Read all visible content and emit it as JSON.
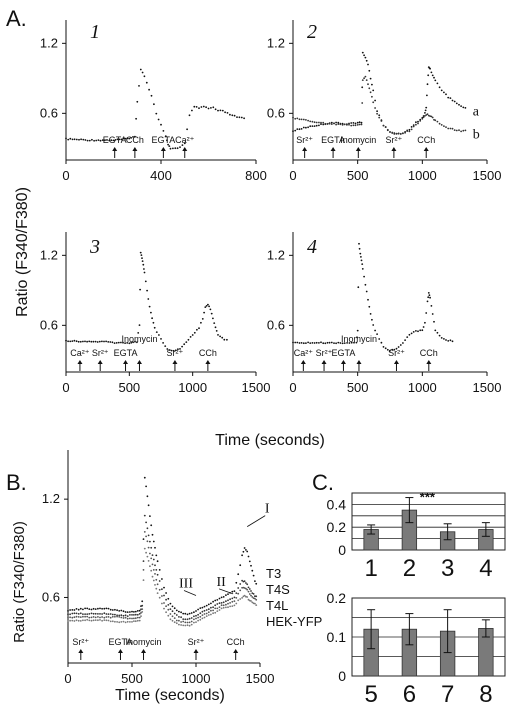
{
  "figure": {
    "panel_labels": [
      "A.",
      "B.",
      "C."
    ],
    "ylabel": "Ratio (F340/F380)",
    "xlabel_A": "Time (seconds)",
    "xlabel_B": "Time (seconds)"
  },
  "chart_data": [
    {
      "type": "scatter",
      "panel": "A1",
      "panel_number": "1",
      "xlim": [
        0,
        800
      ],
      "ylim": [
        0.2,
        1.4
      ],
      "xticks": [
        0,
        400,
        800
      ],
      "xticklabels": [
        "0",
        "400",
        "800"
      ],
      "yticks": [
        0.6,
        1.2
      ],
      "yticklabels": [
        "0.6",
        "1.2"
      ],
      "events": [
        {
          "label": "EGTA",
          "t": 205
        },
        {
          "label": "CCh",
          "t": 290
        },
        {
          "label": "EGTA",
          "t": 410
        },
        {
          "label": "Ca²⁺",
          "t": 500
        }
      ],
      "series": [
        {
          "x": [
            0,
            100,
            200,
            250,
            290,
            300,
            315,
            330,
            360,
            380,
            400,
            420,
            430,
            440,
            460,
            480,
            500,
            520,
            540,
            560,
            580,
            600,
            620,
            640,
            660,
            680,
            700,
            720,
            740,
            760
          ],
          "y": [
            0.38,
            0.37,
            0.37,
            0.38,
            0.4,
            0.7,
            0.98,
            0.92,
            0.75,
            0.6,
            0.5,
            0.4,
            0.33,
            0.3,
            0.3,
            0.31,
            0.34,
            0.58,
            0.66,
            0.64,
            0.66,
            0.64,
            0.65,
            0.62,
            0.62,
            0.6,
            0.58,
            0.57,
            0.56,
            0.55
          ]
        }
      ]
    },
    {
      "type": "scatter",
      "panel": "A2",
      "panel_number": "2",
      "xlim": [
        0,
        1500
      ],
      "ylim": [
        0.2,
        1.4
      ],
      "xticks": [
        0,
        500,
        1000,
        1500
      ],
      "xticklabels": [
        "0",
        "500",
        "1000",
        "1500"
      ],
      "yticks": [
        0.6,
        1.2
      ],
      "yticklabels": [
        "0.6",
        "1.2"
      ],
      "events": [
        {
          "label": "Sr²⁺",
          "t": 90
        },
        {
          "label": "EGTA",
          "t": 310
        },
        {
          "label": "Inomycin",
          "t": 505
        },
        {
          "label": "Sr²⁺",
          "t": 780
        },
        {
          "label": "CCh",
          "t": 1030
        }
      ],
      "series": [
        {
          "name": "a",
          "x": [
            0,
            100,
            200,
            300,
            400,
            500,
            530,
            540,
            560,
            580,
            600,
            620,
            650,
            700,
            750,
            800,
            850,
            900,
            950,
            1000,
            1020,
            1030,
            1040,
            1050,
            1060,
            1080,
            1100,
            1150,
            1200,
            1250,
            1300,
            1350
          ],
          "y": [
            0.45,
            0.48,
            0.5,
            0.52,
            0.51,
            0.52,
            0.52,
            1.12,
            1.08,
            1.02,
            0.9,
            0.8,
            0.62,
            0.5,
            0.44,
            0.42,
            0.43,
            0.46,
            0.52,
            0.56,
            0.6,
            0.65,
            0.85,
            1.0,
            0.98,
            0.93,
            0.88,
            0.8,
            0.74,
            0.7,
            0.66,
            0.64
          ]
        },
        {
          "name": "b",
          "x": [
            0,
            100,
            200,
            300,
            400,
            500,
            530,
            540,
            560,
            580,
            600,
            620,
            650,
            700,
            750,
            800,
            850,
            900,
            950,
            1000,
            1020,
            1040,
            1060,
            1080,
            1100,
            1150,
            1200,
            1250,
            1300,
            1350
          ],
          "y": [
            0.56,
            0.54,
            0.52,
            0.51,
            0.5,
            0.5,
            0.5,
            0.88,
            0.92,
            0.85,
            0.78,
            0.7,
            0.6,
            0.5,
            0.44,
            0.42,
            0.43,
            0.45,
            0.5,
            0.55,
            0.58,
            0.59,
            0.58,
            0.56,
            0.54,
            0.5,
            0.47,
            0.46,
            0.45,
            0.45
          ]
        }
      ],
      "curve_labels": [
        "a",
        "b"
      ]
    },
    {
      "type": "scatter",
      "panel": "A3",
      "panel_number": "3",
      "xlim": [
        0,
        1500
      ],
      "ylim": [
        0.2,
        1.4
      ],
      "xticks": [
        0,
        500,
        1000,
        1500
      ],
      "xticklabels": [
        "0",
        "500",
        "1000",
        "1500"
      ],
      "yticks": [
        0.6,
        1.2
      ],
      "yticklabels": [
        "0.6",
        "1.2"
      ],
      "events": [
        {
          "label": "Ca²⁺",
          "t": 110
        },
        {
          "label": "Sr²⁺",
          "t": 270
        },
        {
          "label": "EGTA",
          "t": 470
        },
        {
          "label": "Inomycin",
          "t": 580
        },
        {
          "label": "Sr²⁺",
          "t": 860
        },
        {
          "label": "CCh",
          "t": 1120
        }
      ],
      "series": [
        {
          "x": [
            0,
            100,
            200,
            300,
            400,
            500,
            560,
            580,
            590,
            600,
            610,
            620,
            640,
            660,
            680,
            700,
            750,
            800,
            850,
            900,
            950,
            1000,
            1050,
            1080,
            1100,
            1120,
            1140,
            1160,
            1180,
            1200,
            1250,
            1290
          ],
          "y": [
            0.47,
            0.46,
            0.46,
            0.46,
            0.45,
            0.45,
            0.46,
            0.6,
            1.22,
            1.18,
            1.12,
            1.05,
            0.9,
            0.76,
            0.66,
            0.58,
            0.48,
            0.4,
            0.38,
            0.4,
            0.46,
            0.52,
            0.58,
            0.66,
            0.76,
            0.78,
            0.74,
            0.66,
            0.58,
            0.52,
            0.48,
            0.47
          ]
        }
      ]
    },
    {
      "type": "scatter",
      "panel": "A4",
      "panel_number": "4",
      "xlim": [
        0,
        1500
      ],
      "ylim": [
        0.2,
        1.4
      ],
      "xticks": [
        0,
        500,
        1000,
        1500
      ],
      "xticklabels": [
        "0",
        "500",
        "1000",
        "1500"
      ],
      "yticks": [
        0.6,
        1.2
      ],
      "yticklabels": [
        "0.6",
        "1.2"
      ],
      "events": [
        {
          "label": "Ca²⁺",
          "t": 80
        },
        {
          "label": "Sr²⁺",
          "t": 240
        },
        {
          "label": "EGTA",
          "t": 390
        },
        {
          "label": "Inomycin",
          "t": 510
        },
        {
          "label": "Sr²⁺",
          "t": 800
        },
        {
          "label": "CCh",
          "t": 1050
        }
      ],
      "series": [
        {
          "x": [
            0,
            100,
            200,
            300,
            400,
            490,
            500,
            510,
            520,
            530,
            540,
            560,
            580,
            600,
            620,
            650,
            700,
            750,
            800,
            850,
            900,
            950,
            1000,
            1020,
            1040,
            1050,
            1060,
            1080,
            1100,
            1150,
            1200,
            1250
          ],
          "y": [
            0.45,
            0.45,
            0.45,
            0.45,
            0.45,
            0.45,
            0.55,
            1.3,
            1.22,
            1.16,
            1.08,
            0.95,
            0.82,
            0.7,
            0.6,
            0.52,
            0.42,
            0.38,
            0.4,
            0.45,
            0.52,
            0.55,
            0.56,
            0.62,
            0.8,
            0.88,
            0.84,
            0.7,
            0.56,
            0.49,
            0.47,
            0.46
          ]
        }
      ]
    },
    {
      "type": "scatter",
      "panel": "B",
      "xlim": [
        0,
        1500
      ],
      "ylim": [
        0.2,
        1.5
      ],
      "xticks": [
        0,
        500,
        1000,
        1500
      ],
      "xticklabels": [
        "0",
        "500",
        "1000",
        "1500"
      ],
      "yticks": [
        0.6,
        1.2
      ],
      "yticklabels": [
        "0.6",
        "1.2"
      ],
      "events": [
        {
          "label": "Sr²⁺",
          "t": 100
        },
        {
          "label": "EGTA",
          "t": 410
        },
        {
          "label": "Inomycin",
          "t": 590
        },
        {
          "label": "Sr²⁺",
          "t": 1000
        },
        {
          "label": "CCh",
          "t": 1310
        }
      ],
      "annotations": [
        {
          "label": "I",
          "t": 1400,
          "y": 1.02
        },
        {
          "label": "II",
          "t": 1290,
          "y": 0.61
        },
        {
          "label": "III",
          "t": 1000,
          "y": 0.6
        }
      ],
      "series": [
        {
          "name": "T3",
          "x": [
            0,
            100,
            200,
            300,
            400,
            500,
            560,
            580,
            600,
            620,
            640,
            660,
            680,
            700,
            750,
            800,
            850,
            900,
            950,
            1000,
            1050,
            1100,
            1150,
            1200,
            1250,
            1300,
            1330,
            1360,
            1380,
            1400,
            1420,
            1440,
            1460,
            1480
          ],
          "y": [
            0.52,
            0.53,
            0.53,
            0.53,
            0.52,
            0.51,
            0.52,
            0.58,
            1.33,
            1.22,
            1.1,
            0.98,
            0.9,
            0.82,
            0.66,
            0.56,
            0.52,
            0.5,
            0.5,
            0.52,
            0.54,
            0.56,
            0.58,
            0.6,
            0.62,
            0.64,
            0.74,
            0.86,
            0.9,
            0.88,
            0.82,
            0.76,
            0.7,
            0.66
          ]
        },
        {
          "name": "T4S",
          "x": [
            0,
            100,
            200,
            300,
            400,
            500,
            560,
            580,
            600,
            620,
            640,
            660,
            680,
            700,
            750,
            800,
            850,
            900,
            950,
            1000,
            1050,
            1100,
            1150,
            1200,
            1250,
            1300,
            1330,
            1360,
            1380,
            1400,
            1420,
            1440,
            1460,
            1480
          ],
          "y": [
            0.5,
            0.5,
            0.5,
            0.5,
            0.49,
            0.49,
            0.5,
            0.55,
            1.1,
            1.02,
            0.94,
            0.86,
            0.8,
            0.74,
            0.61,
            0.53,
            0.49,
            0.47,
            0.47,
            0.49,
            0.51,
            0.53,
            0.55,
            0.57,
            0.58,
            0.6,
            0.66,
            0.7,
            0.7,
            0.68,
            0.65,
            0.63,
            0.61,
            0.6
          ]
        },
        {
          "name": "T4L",
          "x": [
            0,
            100,
            200,
            300,
            400,
            500,
            560,
            580,
            600,
            620,
            640,
            660,
            680,
            700,
            750,
            800,
            850,
            900,
            950,
            1000,
            1050,
            1100,
            1150,
            1200,
            1250,
            1300,
            1330,
            1360,
            1380,
            1400,
            1420,
            1440,
            1460,
            1480
          ],
          "y": [
            0.48,
            0.48,
            0.48,
            0.48,
            0.48,
            0.47,
            0.48,
            0.53,
            1.0,
            0.94,
            0.87,
            0.8,
            0.74,
            0.68,
            0.57,
            0.5,
            0.46,
            0.45,
            0.45,
            0.47,
            0.49,
            0.51,
            0.53,
            0.55,
            0.56,
            0.58,
            0.62,
            0.66,
            0.66,
            0.65,
            0.62,
            0.6,
            0.59,
            0.58
          ]
        },
        {
          "name": "HEK-YFP",
          "x": [
            0,
            100,
            200,
            300,
            400,
            500,
            560,
            580,
            600,
            620,
            640,
            660,
            680,
            700,
            750,
            800,
            850,
            900,
            950,
            1000,
            1050,
            1100,
            1150,
            1200,
            1250,
            1300,
            1330,
            1360,
            1380,
            1400,
            1420,
            1440,
            1460,
            1480
          ],
          "y": [
            0.46,
            0.46,
            0.46,
            0.46,
            0.45,
            0.45,
            0.46,
            0.51,
            0.9,
            0.85,
            0.79,
            0.73,
            0.68,
            0.63,
            0.53,
            0.47,
            0.44,
            0.43,
            0.43,
            0.45,
            0.47,
            0.49,
            0.51,
            0.53,
            0.54,
            0.55,
            0.58,
            0.6,
            0.61,
            0.6,
            0.58,
            0.57,
            0.56,
            0.55
          ]
        }
      ]
    },
    {
      "type": "bar",
      "panel": "C-top",
      "categories": [
        "1",
        "2",
        "3",
        "4"
      ],
      "values": [
        0.18,
        0.35,
        0.16,
        0.18
      ],
      "errors": [
        0.04,
        0.11,
        0.07,
        0.06
      ],
      "ylim": [
        0,
        0.5
      ],
      "yticks": [
        0,
        0.1,
        0.2,
        0.3,
        0.4
      ],
      "yticklabels": [
        "0",
        "",
        "0.2",
        "",
        "0.4"
      ],
      "significance": "***",
      "significance_index": 1
    },
    {
      "type": "bar",
      "panel": "C-bottom",
      "categories": [
        "5",
        "6",
        "7",
        "8"
      ],
      "values": [
        0.12,
        0.12,
        0.115,
        0.122
      ],
      "errors": [
        0.05,
        0.04,
        0.055,
        0.022
      ],
      "ylim": [
        0,
        0.2
      ],
      "yticks": [
        0,
        0.05,
        0.1,
        0.15,
        0.2
      ],
      "yticklabels": [
        "0",
        "",
        "0.1",
        "",
        "0.2"
      ]
    }
  ]
}
